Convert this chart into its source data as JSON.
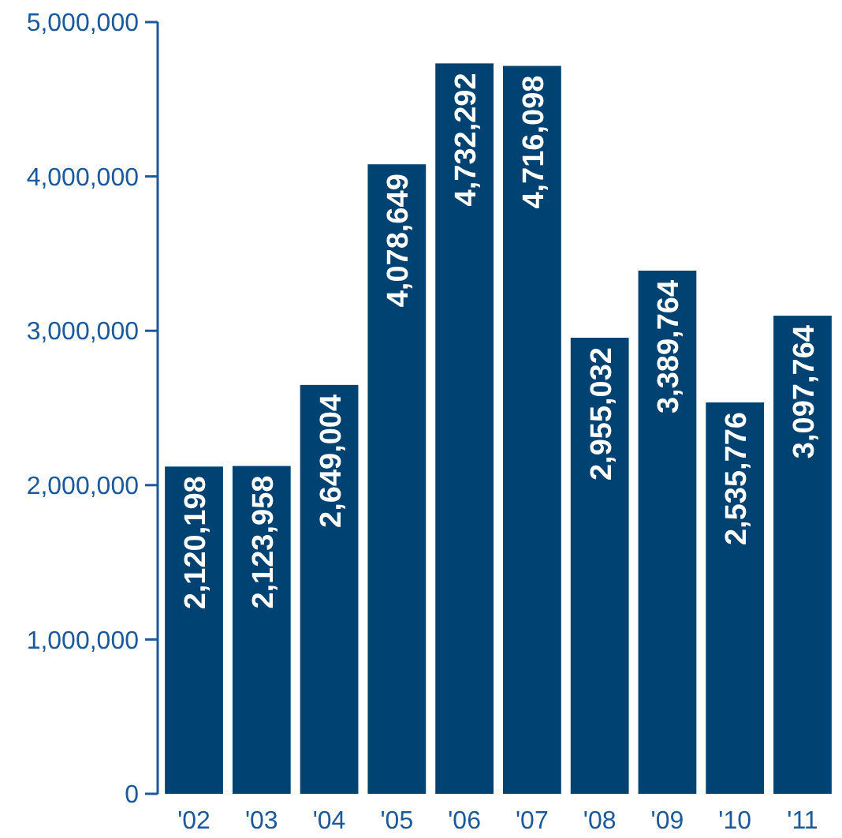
{
  "chart_data": {
    "type": "bar",
    "categories": [
      "'02",
      "'03",
      "'04",
      "'05",
      "'06",
      "'07",
      "'08",
      "'09",
      "'10",
      "'11"
    ],
    "values": [
      2120198,
      2123958,
      2649004,
      4078649,
      4732292,
      4716098,
      2955032,
      3389764,
      2535776,
      3097764
    ],
    "color": "#004272",
    "ylim": [
      0,
      5000000
    ],
    "yticks": [
      {
        "value": 0,
        "label": "0"
      },
      {
        "value": 1000000,
        "label": "1,000,000"
      },
      {
        "value": 2000000,
        "label": "2,000,000"
      },
      {
        "value": 3000000,
        "label": "3,000,000"
      },
      {
        "value": 4000000,
        "label": "4,000,000"
      },
      {
        "value": 5000000,
        "label": "5,000,000"
      }
    ],
    "value_labels": [
      "2,120,198",
      "2,123,958",
      "2,649,004",
      "4,078,649",
      "4,732,292",
      "4,716,098",
      "2,955,032",
      "3,389,764",
      "2,535,776",
      "3,097,764"
    ],
    "grid": false
  }
}
